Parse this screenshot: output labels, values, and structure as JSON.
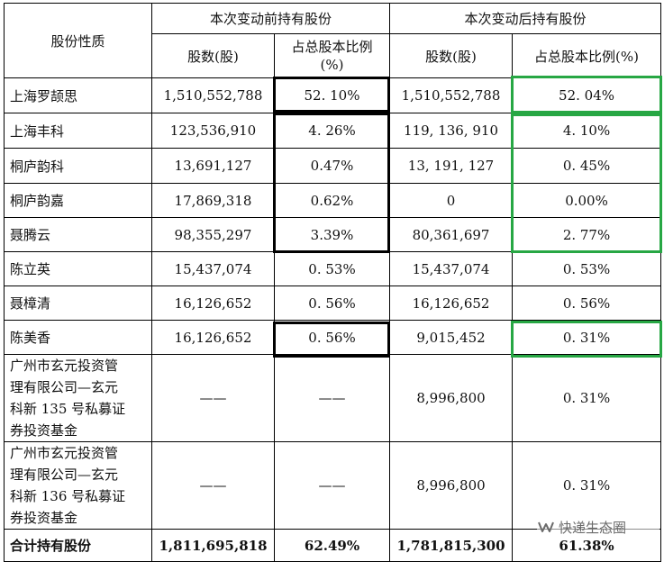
{
  "header": {
    "category": "股份性质",
    "before_group": "本次变动前持有股份",
    "after_group": "本次变动后持有股份",
    "shares_col": "股数(股)",
    "ratio_col_before_line1": "占总股本比例",
    "ratio_col_before_line2": "(%)",
    "ratio_col_after": "占总股本比例(%)"
  },
  "rows": [
    {
      "name": "上海罗颉思",
      "before_shares": "1,510,552,788",
      "before_ratio": "52. 10%",
      "after_shares": "1,510,552,788",
      "after_ratio": "52. 04%"
    },
    {
      "name": "上海丰科",
      "before_shares": "123,536,910",
      "before_ratio": "4. 26%",
      "after_shares": "119, 136, 910",
      "after_ratio": "4. 10%"
    },
    {
      "name": "桐庐韵科",
      "before_shares": "13,691,127",
      "before_ratio": "0.47%",
      "after_shares": "13, 191, 127",
      "after_ratio": "0. 45%"
    },
    {
      "name": "桐庐韵嘉",
      "before_shares": "17,869,318",
      "before_ratio": "0.62%",
      "after_shares": "0",
      "after_ratio": "0.00%"
    },
    {
      "name": "聂腾云",
      "before_shares": "98,355,297",
      "before_ratio": "3.39%",
      "after_shares": "80,361,697",
      "after_ratio": "2. 77%"
    },
    {
      "name": "陈立英",
      "before_shares": "15,437,074",
      "before_ratio": "0. 53%",
      "after_shares": "15,437,074",
      "after_ratio": "0. 53%"
    },
    {
      "name": "聂樟清",
      "before_shares": "16,126,652",
      "before_ratio": "0. 56%",
      "after_shares": "16,126,652",
      "after_ratio": "0. 56%"
    },
    {
      "name": "陈美香",
      "before_shares": "16,126,652",
      "before_ratio": "0. 56%",
      "after_shares": "9,015,452",
      "after_ratio": "0. 31%"
    }
  ],
  "fund_rows": [
    {
      "name_lines": [
        "广州市玄元投资管",
        "理有限公司—玄元",
        "科新 135 号私募证",
        "券投资基金"
      ],
      "before_shares": "——",
      "before_ratio": "——",
      "after_shares": "8,996,800",
      "after_ratio": "0. 31%"
    },
    {
      "name_lines": [
        "广州市玄元投资管",
        "理有限公司—玄元",
        "科新 136 号私募证",
        "券投资基金"
      ],
      "before_shares": "——",
      "before_ratio": "——",
      "after_shares": "8,996,800",
      "after_ratio": "0. 31%"
    }
  ],
  "total": {
    "name": "合计持有股份",
    "before_shares": "1,811,695,818",
    "before_ratio": "62.49%",
    "after_shares": "1,781,815,300",
    "after_ratio": "61.38%"
  },
  "highlight_colors": {
    "black": "#000000",
    "green": "#27a744"
  },
  "watermark": {
    "icon": "wechat-channel-icon",
    "text": "快递生态圈"
  }
}
